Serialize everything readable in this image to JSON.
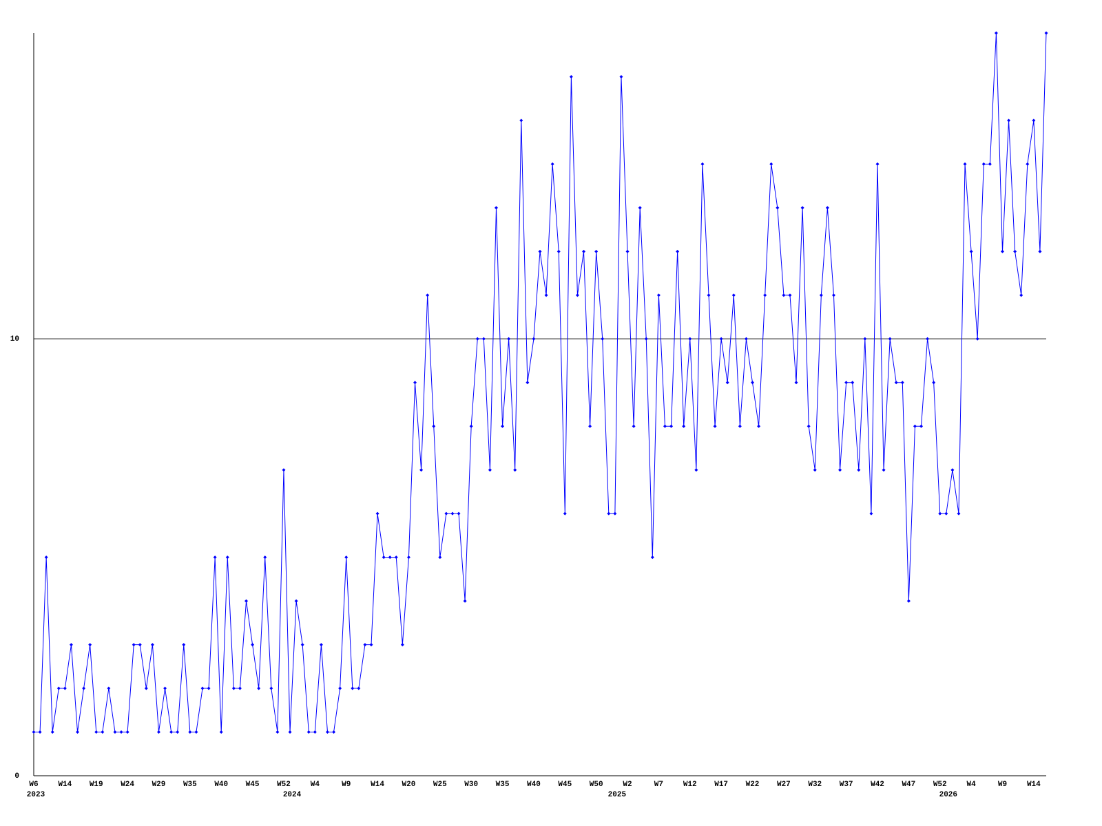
{
  "chart_data": {
    "type": "line",
    "categories": [
      "W6",
      null,
      null,
      null,
      null,
      "W14",
      null,
      null,
      null,
      null,
      "W19",
      null,
      null,
      null,
      null,
      "W24",
      null,
      null,
      null,
      null,
      "W29",
      null,
      null,
      null,
      null,
      "W35",
      null,
      null,
      null,
      null,
      "W40",
      null,
      null,
      null,
      null,
      "W45",
      null,
      null,
      null,
      null,
      "W52",
      null,
      null,
      null,
      null,
      "W4",
      null,
      null,
      null,
      null,
      "W9",
      null,
      null,
      null,
      null,
      "W14",
      null,
      null,
      null,
      null,
      "W20",
      null,
      null,
      null,
      null,
      "W25",
      null,
      null,
      null,
      null,
      "W30",
      null,
      null,
      null,
      null,
      "W35",
      null,
      null,
      null,
      null,
      "W40",
      null,
      null,
      null,
      null,
      "W45",
      null,
      null,
      null,
      null,
      "W50",
      null,
      null,
      null,
      null,
      "W2",
      null,
      null,
      null,
      null,
      "W7",
      null,
      null,
      null,
      null,
      "W12",
      null,
      null,
      null,
      null,
      "W17",
      null,
      null,
      null,
      null,
      "W22",
      null,
      null,
      null,
      null,
      "W27",
      null,
      null,
      null,
      null,
      "W32",
      null,
      null,
      null,
      null,
      "W37",
      null,
      null,
      null,
      null,
      "W42",
      null,
      null,
      null,
      null,
      "W47",
      null,
      null,
      null,
      null,
      "W52",
      null,
      null,
      null,
      null,
      "W4",
      null,
      null,
      null,
      null,
      "W9",
      null,
      null,
      null,
      null,
      "W14",
      null,
      null
    ],
    "year_labels": [
      "2023",
      null,
      null,
      null,
      null,
      null,
      null,
      null,
      null,
      null,
      null,
      null,
      null,
      null,
      null,
      null,
      null,
      null,
      null,
      null,
      null,
      null,
      null,
      null,
      null,
      null,
      null,
      null,
      null,
      null,
      null,
      null,
      null,
      null,
      null,
      null,
      null,
      null,
      null,
      null,
      null,
      "2024",
      null,
      null,
      null,
      null,
      null,
      null,
      null,
      null,
      null,
      null,
      null,
      null,
      null,
      null,
      null,
      null,
      null,
      null,
      null,
      null,
      null,
      null,
      null,
      null,
      null,
      null,
      null,
      null,
      null,
      null,
      null,
      null,
      null,
      null,
      null,
      null,
      null,
      null,
      null,
      null,
      null,
      null,
      null,
      null,
      null,
      null,
      null,
      null,
      null,
      null,
      null,
      "2025",
      null,
      null,
      null,
      null,
      null,
      null,
      null,
      null,
      null,
      null,
      null,
      null,
      null,
      null,
      null,
      null,
      null,
      null,
      null,
      null,
      null,
      null,
      null,
      null,
      null,
      null,
      null,
      null,
      null,
      null,
      null,
      null,
      null,
      null,
      null,
      null,
      null,
      null,
      null,
      null,
      null,
      null,
      null,
      null,
      null,
      null,
      null,
      null,
      null,
      null,
      null,
      null,
      "2026",
      null,
      null,
      null,
      null,
      null,
      null,
      null,
      null,
      null,
      null,
      null,
      null,
      null,
      null,
      null,
      null
    ],
    "series": [
      {
        "color": "#0000ff",
        "values": [
          1,
          1,
          5,
          1,
          2,
          2,
          3,
          1,
          2,
          3,
          1,
          1,
          2,
          1,
          1,
          1,
          3,
          3,
          2,
          3,
          1,
          2,
          1,
          1,
          3,
          1,
          1,
          2,
          2,
          5,
          1,
          5,
          2,
          2,
          4,
          3,
          2,
          5,
          2,
          1,
          7,
          1,
          4,
          3,
          1,
          1,
          3,
          1,
          1,
          2,
          5,
          2,
          2,
          3,
          3,
          6,
          5,
          5,
          5,
          3,
          5,
          9,
          7,
          11,
          8,
          5,
          6,
          6,
          6,
          4,
          8,
          10,
          10,
          7,
          13,
          8,
          10,
          7,
          15,
          9,
          10,
          12,
          11,
          14,
          12,
          6,
          16,
          11,
          12,
          8,
          12,
          10,
          6,
          6,
          16,
          12,
          8,
          13,
          10,
          5,
          11,
          8,
          8,
          12,
          8,
          10,
          7,
          14,
          11,
          8,
          10,
          9,
          11,
          8,
          10,
          9,
          8,
          11,
          14,
          13,
          11,
          11,
          9,
          13,
          8,
          7,
          11,
          13,
          11,
          7,
          9,
          9,
          7,
          10,
          6,
          14,
          7,
          10,
          9,
          9,
          4,
          8,
          8,
          10,
          9,
          6,
          6,
          7,
          6,
          14,
          12,
          10,
          14,
          14,
          17,
          12,
          15,
          12,
          11,
          14,
          15,
          12,
          17
        ]
      }
    ],
    "ylim": [
      0,
      17
    ],
    "yticks": [
      0,
      10
    ],
    "grid": true
  }
}
